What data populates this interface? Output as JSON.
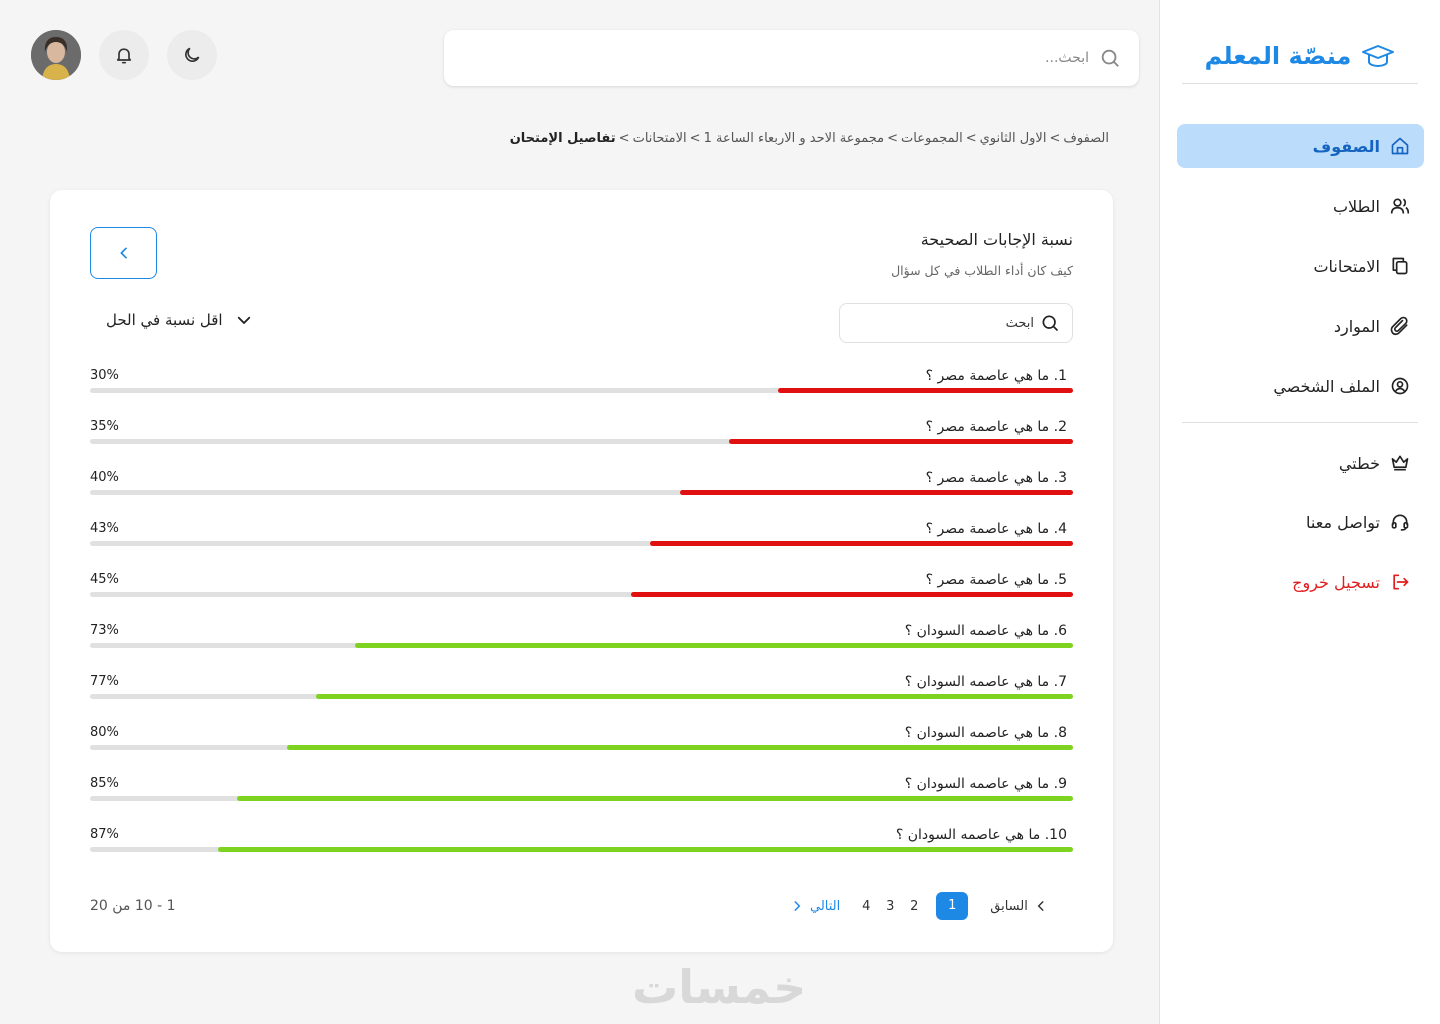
{
  "brand": {
    "name": "منصّة المعلم",
    "accent": "#1e88e5"
  },
  "sidebar": {
    "items": [
      {
        "label": "الصفوف",
        "icon": "home-icon",
        "active": true
      },
      {
        "label": "الطلاب",
        "icon": "users-icon"
      },
      {
        "label": "الامتحانات",
        "icon": "copy-icon"
      },
      {
        "label": "الموارد",
        "icon": "paperclip-icon"
      },
      {
        "label": "الملف الشخصي",
        "icon": "user-circle-icon"
      },
      {
        "label": "خطتي",
        "icon": "crown-icon"
      },
      {
        "label": "تواصل معنا",
        "icon": "headset-icon"
      },
      {
        "label": "تسجيل خروج",
        "icon": "logout-icon"
      }
    ]
  },
  "topbar": {
    "search_placeholder": "ابحث..."
  },
  "breadcrumb": [
    "الصفوف",
    "الاول الثانوي",
    "المجموعات",
    "مجموعة الاحد و الاربعاء الساعة 1",
    "الامتحانات",
    "تفاصيل الإمتحان"
  ],
  "card": {
    "title": "نسبة الإجابات الصحيحة",
    "subtitle": "كيف كان أداء الطلاب في كل سؤال",
    "search_placeholder": "ابحث",
    "sort_label": "اقل نسبة في الحل"
  },
  "colors": {
    "low": "#e01010",
    "high": "#7ed321",
    "track": "#e0e0e0"
  },
  "questions": [
    {
      "label": "1.  ما هي عاصمة مصر ؟",
      "percent": 30,
      "pct_text": "30%",
      "status": "low"
    },
    {
      "label": "2.  ما هي عاصمة مصر ؟",
      "percent": 35,
      "pct_text": "35%",
      "status": "low"
    },
    {
      "label": "3.  ما هي عاصمة مصر ؟",
      "percent": 40,
      "pct_text": "40%",
      "status": "low"
    },
    {
      "label": "4.  ما هي عاصمة مصر ؟",
      "percent": 43,
      "pct_text": "43%",
      "status": "low"
    },
    {
      "label": "5.  ما هي عاصمة مصر ؟",
      "percent": 45,
      "pct_text": "45%",
      "status": "low"
    },
    {
      "label": "6.  ما هي عاصمه السودان ؟",
      "percent": 73,
      "pct_text": "73%",
      "status": "high"
    },
    {
      "label": "7.  ما هي عاصمه السودان ؟",
      "percent": 77,
      "pct_text": "77%",
      "status": "high"
    },
    {
      "label": "8.  ما هي عاصمه السودان ؟",
      "percent": 80,
      "pct_text": "80%",
      "status": "high"
    },
    {
      "label": "9.  ما هي عاصمه السودان ؟",
      "percent": 85,
      "pct_text": "85%",
      "status": "high"
    },
    {
      "label": "10. ما هي عاصمه السودان ؟",
      "percent": 87,
      "pct_text": "87%",
      "status": "high"
    }
  ],
  "pagination": {
    "prev": "السابق",
    "next": "التالي",
    "pages": [
      "1",
      "2",
      "3",
      "4"
    ],
    "current": "1",
    "range_text": "1 - 10 من  20"
  },
  "watermark": "خمسات"
}
